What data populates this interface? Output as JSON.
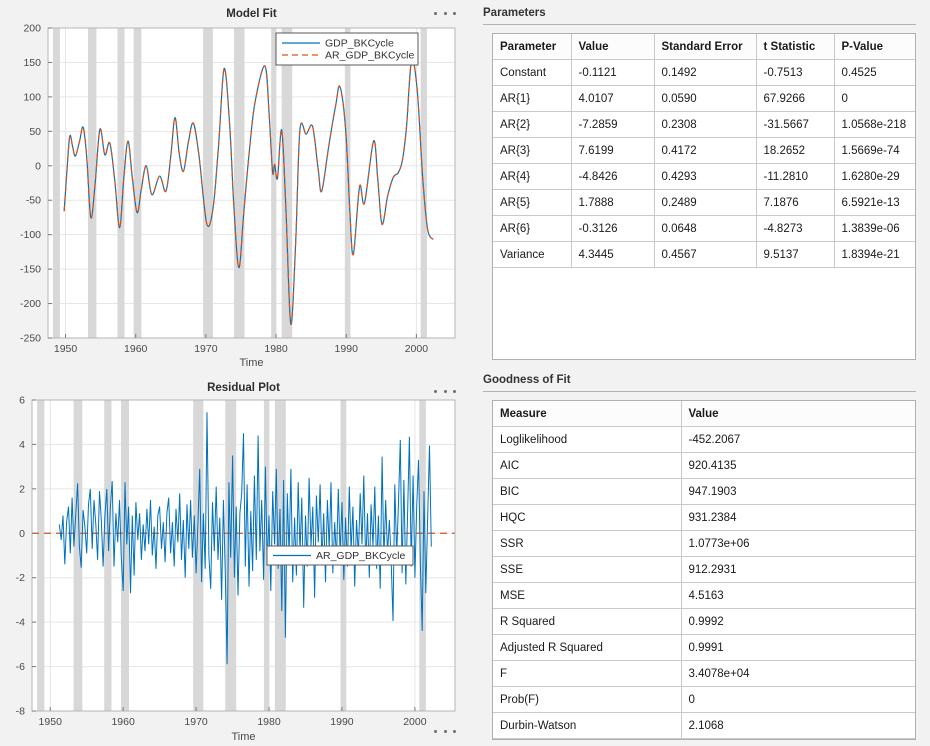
{
  "colors": {
    "background": "#f2f2f2",
    "plot_background": "#ffffff",
    "grid": "#e6e6e6",
    "recession_band": "#d8d8d8",
    "axis_box": "#b5b5b5",
    "tick_text": "#4a4a4a",
    "title_text": "#2e2e2e",
    "series_blue": "#0072BD",
    "series_orange": "#D95319",
    "legend_border": "#5a5a5a"
  },
  "panels": {
    "parameters": {
      "title": "Parameters",
      "table": {
        "columns": [
          "Parameter",
          "Value",
          "Standard Error",
          "t Statistic",
          "P-Value"
        ],
        "rows": [
          [
            "Constant",
            "-0.1121",
            "0.1492",
            "-0.7513",
            "0.4525"
          ],
          [
            "AR{1}",
            "4.0107",
            "0.0590",
            "67.9266",
            "0"
          ],
          [
            "AR{2}",
            "-7.2859",
            "0.2308",
            "-31.5667",
            "1.0568e-218"
          ],
          [
            "AR{3}",
            "7.6199",
            "0.4172",
            "18.2652",
            "1.5669e-74"
          ],
          [
            "AR{4}",
            "-4.8426",
            "0.4293",
            "-11.2810",
            "1.6280e-29"
          ],
          [
            "AR{5}",
            "1.7888",
            "0.2489",
            "7.1876",
            "6.5921e-13"
          ],
          [
            "AR{6}",
            "-0.3126",
            "0.0648",
            "-4.8273",
            "1.3839e-06"
          ],
          [
            "Variance",
            "4.3445",
            "0.4567",
            "9.5137",
            "1.8394e-21"
          ]
        ]
      }
    },
    "goodness_of_fit": {
      "title": "Goodness of Fit",
      "table": {
        "columns": [
          "Measure",
          "Value"
        ],
        "rows": [
          [
            "Loglikelihood",
            "-452.2067"
          ],
          [
            "AIC",
            "920.4135"
          ],
          [
            "BIC",
            "947.1903"
          ],
          [
            "HQC",
            "931.2384"
          ],
          [
            "SSR",
            "1.0773e+06"
          ],
          [
            "SSE",
            "912.2931"
          ],
          [
            "MSE",
            "4.5163"
          ],
          [
            "R Squared",
            "0.9992"
          ],
          [
            "Adjusted R Squared",
            "0.9991"
          ],
          [
            "F",
            "3.4078e+04"
          ],
          [
            "Prob(F)",
            "0"
          ],
          [
            "Durbin-Watson",
            "2.1068"
          ]
        ]
      }
    }
  },
  "chart_data": [
    {
      "id": "model_fit",
      "type": "line",
      "title": "Model Fit",
      "xlabel": "Time",
      "xlim": [
        1947.5,
        2005.5
      ],
      "ylim": [
        -250,
        200
      ],
      "xticks": [
        1950,
        1960,
        1970,
        1980,
        1990,
        2000
      ],
      "yticks": [
        200,
        150,
        100,
        50,
        0,
        -50,
        -100,
        -150,
        -200,
        -250
      ],
      "grid": true,
      "legend_position": "upper-right-inside",
      "recession_bands": [
        [
          1948.2,
          1949.2
        ],
        [
          1953.2,
          1954.4
        ],
        [
          1957.4,
          1958.4
        ],
        [
          1959.7,
          1960.8
        ],
        [
          1969.6,
          1971.0
        ],
        [
          1974.0,
          1975.5
        ],
        [
          1979.3,
          1980.0
        ],
        [
          1980.8,
          1982.3
        ],
        [
          1989.8,
          1990.6
        ],
        [
          2000.6,
          2001.5
        ]
      ],
      "series": [
        {
          "name": "GDP_BKCycle",
          "color": "#0072BD",
          "style": "solid",
          "points": "shared"
        },
        {
          "name": "AR_GDP_BKCycle",
          "color": "#D95319",
          "style": "dashed",
          "points": "shared",
          "note": "fitted values overlap the observed series almost exactly"
        }
      ],
      "shared_points": [
        [
          1949.8,
          -66
        ],
        [
          1950.2,
          -8
        ],
        [
          1950.6,
          43
        ],
        [
          1951.0,
          28
        ],
        [
          1951.4,
          14
        ],
        [
          1952.0,
          36
        ],
        [
          1952.5,
          56
        ],
        [
          1953.0,
          15
        ],
        [
          1953.6,
          -75
        ],
        [
          1954.2,
          -28
        ],
        [
          1954.9,
          53
        ],
        [
          1955.6,
          16
        ],
        [
          1956.3,
          33
        ],
        [
          1957.0,
          -20
        ],
        [
          1957.7,
          -90
        ],
        [
          1958.3,
          -18
        ],
        [
          1958.9,
          36
        ],
        [
          1959.5,
          -16
        ],
        [
          1960.2,
          -68
        ],
        [
          1960.8,
          -34
        ],
        [
          1961.5,
          0
        ],
        [
          1962.3,
          -42
        ],
        [
          1963.4,
          -15
        ],
        [
          1964.3,
          -37
        ],
        [
          1965.0,
          14
        ],
        [
          1965.6,
          70
        ],
        [
          1966.2,
          18
        ],
        [
          1966.8,
          -8
        ],
        [
          1967.5,
          34
        ],
        [
          1968.2,
          62
        ],
        [
          1969.0,
          16
        ],
        [
          1970.1,
          -83
        ],
        [
          1971.0,
          -63
        ],
        [
          1971.8,
          28
        ],
        [
          1972.6,
          141
        ],
        [
          1973.4,
          58
        ],
        [
          1974.0,
          -62
        ],
        [
          1974.7,
          -148
        ],
        [
          1975.4,
          -68
        ],
        [
          1976.2,
          22
        ],
        [
          1977.0,
          92
        ],
        [
          1978.4,
          145
        ],
        [
          1979.0,
          78
        ],
        [
          1979.5,
          -9
        ],
        [
          1979.8,
          2
        ],
        [
          1980.2,
          -18
        ],
        [
          1980.8,
          52
        ],
        [
          1981.4,
          -62
        ],
        [
          1982.1,
          -230
        ],
        [
          1982.8,
          -110
        ],
        [
          1983.4,
          52
        ],
        [
          1984.3,
          46
        ],
        [
          1985.2,
          57
        ],
        [
          1986.0,
          -5
        ],
        [
          1986.5,
          -37
        ],
        [
          1987.5,
          28
        ],
        [
          1988.5,
          88
        ],
        [
          1989.1,
          115
        ],
        [
          1989.9,
          55
        ],
        [
          1990.5,
          -62
        ],
        [
          1991.0,
          -129
        ],
        [
          1991.9,
          -30
        ],
        [
          1992.6,
          -54
        ],
        [
          1993.9,
          36
        ],
        [
          1994.5,
          -20
        ],
        [
          1995.1,
          -85
        ],
        [
          1995.9,
          -44
        ],
        [
          1996.7,
          -17
        ],
        [
          1997.4,
          -10
        ],
        [
          1998.0,
          8
        ],
        [
          1998.6,
          58
        ],
        [
          1999.3,
          152
        ],
        [
          2000.1,
          112
        ],
        [
          2000.9,
          -18
        ],
        [
          2001.6,
          -92
        ],
        [
          2002.4,
          -107
        ]
      ]
    },
    {
      "id": "residual_plot",
      "type": "line",
      "title": "Residual Plot",
      "xlabel": "Time",
      "xlim": [
        1947.5,
        2005.5
      ],
      "ylim": [
        -8,
        6
      ],
      "xticks": [
        1950,
        1960,
        1970,
        1980,
        1990,
        2000
      ],
      "yticks": [
        6,
        4,
        2,
        0,
        -2,
        -4,
        -6,
        -8
      ],
      "grid": true,
      "legend_position": "middle-right-inside",
      "zero_line": {
        "value": 0,
        "color": "#D95319",
        "style": "dashed"
      },
      "recession_bands": [
        [
          1948.2,
          1949.2
        ],
        [
          1953.2,
          1954.4
        ],
        [
          1957.4,
          1958.4
        ],
        [
          1959.7,
          1960.8
        ],
        [
          1969.6,
          1971.0
        ],
        [
          1974.0,
          1975.5
        ],
        [
          1979.3,
          1980.0
        ],
        [
          1980.8,
          1982.3
        ],
        [
          1989.8,
          1990.6
        ],
        [
          2000.6,
          2001.5
        ]
      ],
      "series": [
        {
          "name": "AR_GDP_BKCycle",
          "color": "#0072BD",
          "style": "solid",
          "points": "quarterly"
        }
      ],
      "quarterly": {
        "start": 1951.25,
        "step": 0.25,
        "values": [
          0.4,
          -0.3,
          0.8,
          -1.4,
          0.5,
          1.2,
          -0.9,
          1.6,
          -0.6,
          0.9,
          2.25,
          -0.6,
          -1.55,
          1.05,
          0.3,
          -0.9,
          1.3,
          2.0,
          -0.7,
          1.5,
          0.4,
          -1.2,
          1.9,
          0.6,
          -1.5,
          0.8,
          2.0,
          -0.8,
          1.2,
          2.35,
          -1.5,
          0.9,
          -0.4,
          1.5,
          -1.1,
          -2.6,
          2.3,
          -0.5,
          1.2,
          -2.7,
          0.8,
          -1.9,
          1.4,
          -0.3,
          0.9,
          -1.2,
          0.4,
          -0.8,
          1.1,
          -0.5,
          1.5,
          -1.0,
          0.3,
          -1.6,
          0.8,
          1.2,
          -0.7,
          0.5,
          -1.3,
          0.9,
          1.6,
          -0.9,
          0.5,
          -1.5,
          1.1,
          -0.4,
          1.8,
          -1.2,
          0.6,
          -2.0,
          1.3,
          -0.7,
          1.5,
          -1.1,
          0.8,
          -1.8,
          0.4,
          2.9,
          -2.2,
          0.9,
          -1.6,
          5.45,
          -1.0,
          -2.5,
          1.4,
          -0.8,
          2.1,
          -1.2,
          0.7,
          -3.0,
          1.5,
          -1.8,
          -5.9,
          2.3,
          -1.1,
          3.5,
          -2.0,
          1.2,
          -2.8,
          0.9,
          1.8,
          4.5,
          -1.5,
          2.2,
          -2.4,
          1.0,
          -1.7,
          2.6,
          -1.2,
          4.4,
          -0.8,
          1.5,
          -2.1,
          3.0,
          -1.4,
          0.8,
          -2.6,
          1.9,
          -0.5,
          2.9,
          -1.6,
          1.1,
          -3.5,
          2.4,
          -4.7,
          1.8,
          -1.0,
          2.9,
          -2.2,
          0.7,
          -1.9,
          2.3,
          -0.9,
          1.6,
          -3.35,
          0.8,
          -1.5,
          2.5,
          -0.6,
          1.2,
          -2.9,
          1.7,
          -0.4,
          2.2,
          -1.3,
          0.9,
          -2.2,
          1.5,
          -0.7,
          2.3,
          -1.8,
          0.5,
          -1.2,
          2.0,
          -0.9,
          1.4,
          -2.1,
          0.7,
          -1.5,
          2.1,
          -0.8,
          1.2,
          -2.4,
          0.6,
          -1.0,
          1.8,
          -0.5,
          2.6,
          -1.4,
          0.9,
          -2.0,
          1.3,
          -0.6,
          2.1,
          -1.6,
          0.8,
          -2.5,
          3.45,
          -1.2,
          1.5,
          -0.9,
          0.6,
          -1.3,
          -3.95,
          2.2,
          -1.0,
          1.4,
          4.2,
          -1.8,
          2.4,
          -2.3,
          0.9,
          4.35,
          -1.5,
          2.6,
          -2.0,
          1.2,
          3.3,
          -1.4,
          -4.4,
          1.9,
          -2.7,
          0.8,
          3.95,
          -0.6
        ]
      }
    }
  ]
}
